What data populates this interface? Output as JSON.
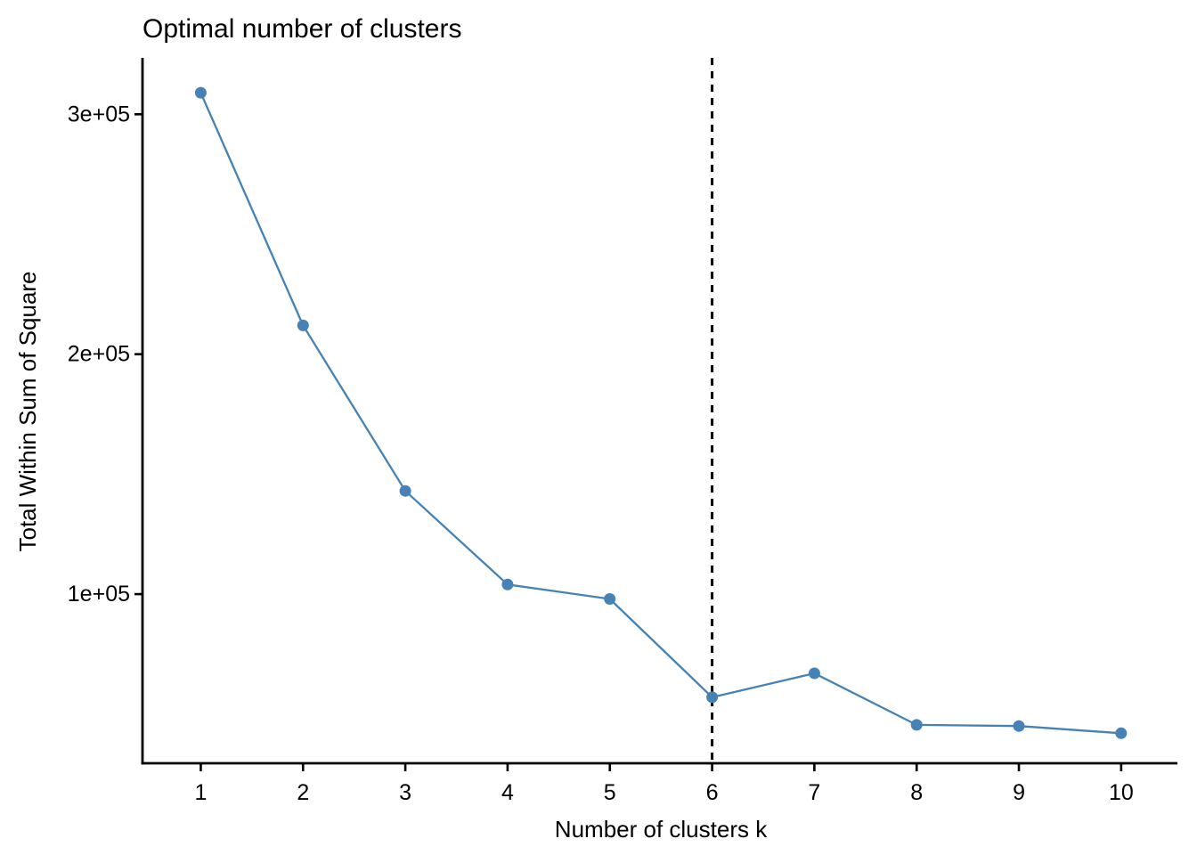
{
  "chart_data": {
    "type": "line",
    "title": "Optimal number of clusters",
    "xlabel": "Number of clusters k",
    "ylabel": "Total Within Sum of Square",
    "x": [
      1,
      2,
      3,
      4,
      5,
      6,
      7,
      8,
      9,
      10
    ],
    "values": [
      309000,
      212000,
      143000,
      104000,
      98000,
      57000,
      67000,
      45500,
      45000,
      42000
    ],
    "series_name": "total-within-sum-of-square",
    "xtick_labels": [
      "1",
      "2",
      "3",
      "4",
      "5",
      "6",
      "7",
      "8",
      "9",
      "10"
    ],
    "yticks": [
      {
        "value": 100000,
        "label": "1e+05"
      },
      {
        "value": 200000,
        "label": "2e+05"
      },
      {
        "value": 300000,
        "label": "3e+05"
      }
    ],
    "xlim": [
      0.43,
      10.55
    ],
    "ylim": [
      29500,
      323500
    ],
    "vline_x": 6,
    "vline_style": "dashed",
    "grid": false,
    "legend": "none",
    "theme": "classic",
    "line_color": "#4682B4",
    "point_color": "#4682B4",
    "vline_color": "#000000",
    "axis_color": "#000000",
    "background_color": "#ffffff"
  }
}
